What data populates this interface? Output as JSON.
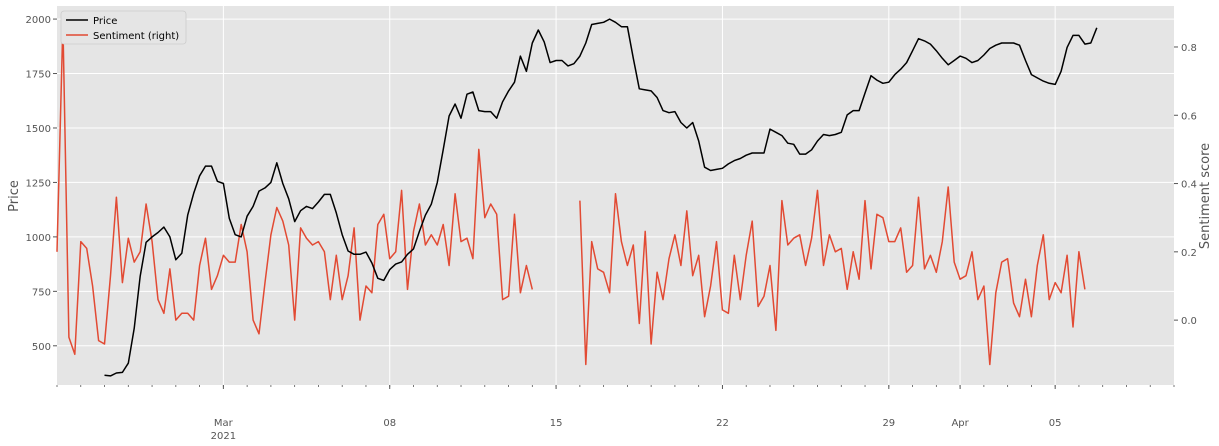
{
  "chart_data": {
    "type": "line",
    "title": "",
    "ylabel": "Price",
    "ylabel_right": "Sentiment score",
    "ylim": [
      320,
      2060
    ],
    "ylim_right": [
      -0.19,
      0.92
    ],
    "xlim": [
      "2021-02-22",
      "2021-04-10"
    ],
    "grid": true,
    "legend_position": "top-left",
    "colors": {
      "price": "#000000",
      "sentiment": "#e24a33",
      "plot_bg": "#e5e5e5",
      "grid": "#ffffff",
      "text": "#555555"
    },
    "yticks": [
      500,
      750,
      1000,
      1250,
      1500,
      1750,
      2000
    ],
    "yticks_right": [
      "0.0",
      "0.2",
      "0.4",
      "0.6",
      "0.8"
    ],
    "yticks_right_values": [
      0.0,
      0.2,
      0.4,
      0.6,
      0.8
    ],
    "xticks": [
      {
        "date": "2021-03-01",
        "label": "Mar",
        "label2": "2021"
      },
      {
        "date": "2021-03-08",
        "label": "08",
        "label2": ""
      },
      {
        "date": "2021-03-15",
        "label": "15",
        "label2": ""
      },
      {
        "date": "2021-03-22",
        "label": "22",
        "label2": ""
      },
      {
        "date": "2021-03-29",
        "label": "29",
        "label2": ""
      },
      {
        "date": "2021-04-01",
        "label": "Apr",
        "label2": ""
      },
      {
        "date": "2021-04-05",
        "label": "05",
        "label2": ""
      }
    ],
    "series": [
      {
        "name": "Price",
        "axis": "left",
        "x_start": "2021-02-22",
        "step_days": 0.25,
        "values": [
          null,
          null,
          null,
          null,
          null,
          null,
          null,
          null,
          365,
          362,
          375,
          378,
          420,
          580,
          820,
          975,
          1000,
          1020,
          1045,
          1000,
          895,
          925,
          1100,
          1200,
          1280,
          1325,
          1325,
          1255,
          1245,
          1085,
          1010,
          1000,
          1095,
          1140,
          1210,
          1225,
          1250,
          1340,
          1245,
          1175,
          1070,
          1120,
          1140,
          1130,
          1160,
          1195,
          1195,
          1110,
          1010,
          935,
          920,
          920,
          930,
          880,
          810,
          800,
          850,
          875,
          885,
          920,
          945,
          1025,
          1100,
          1150,
          1250,
          1400,
          1555,
          1610,
          1545,
          1655,
          1665,
          1580,
          1575,
          1575,
          1545,
          1620,
          1670,
          1710,
          1830,
          1760,
          1890,
          1950,
          1895,
          1800,
          1810,
          1810,
          1785,
          1795,
          1830,
          1890,
          1975,
          1980,
          1985,
          2000,
          1985,
          1965,
          1965,
          1820,
          1680,
          1675,
          1670,
          1640,
          1580,
          1570,
          1575,
          1525,
          1500,
          1525,
          1440,
          1320,
          1305,
          1310,
          1315,
          1335,
          1350,
          1360,
          1375,
          1385,
          1385,
          1385,
          1495,
          1480,
          1465,
          1430,
          1425,
          1380,
          1380,
          1400,
          1440,
          1470,
          1465,
          1470,
          1480,
          1560,
          1580,
          1580,
          1660,
          1740,
          1720,
          1705,
          1710,
          1745,
          1770,
          1800,
          1855,
          1910,
          1900,
          1885,
          1855,
          1820,
          1790,
          1810,
          1830,
          1820,
          1800,
          1810,
          1835,
          1865,
          1880,
          1890,
          1890,
          1890,
          1880,
          1810,
          1745,
          1730,
          1715,
          1705,
          1700,
          1760,
          1870,
          1925,
          1925,
          1885,
          1890,
          1960
        ]
      },
      {
        "name": "Sentiment (right)",
        "axis": "right",
        "x_start": "2021-02-22",
        "step_days": 0.25,
        "values": [
          0.2,
          0.87,
          -0.05,
          -0.1,
          0.23,
          0.21,
          0.1,
          -0.06,
          -0.07,
          0.13,
          0.36,
          0.11,
          0.24,
          0.17,
          0.2,
          0.34,
          0.23,
          0.06,
          0.02,
          0.15,
          0.0,
          0.02,
          0.02,
          0.0,
          0.16,
          0.24,
          0.09,
          0.13,
          0.19,
          0.17,
          0.17,
          0.28,
          0.2,
          0.0,
          -0.04,
          0.11,
          0.25,
          0.33,
          0.29,
          0.22,
          0.0,
          0.27,
          0.24,
          0.22,
          0.23,
          0.2,
          0.06,
          0.19,
          0.06,
          0.13,
          0.27,
          0.0,
          0.1,
          0.08,
          0.28,
          0.31,
          0.18,
          0.2,
          0.38,
          0.09,
          0.26,
          0.34,
          0.22,
          0.25,
          0.22,
          0.28,
          0.16,
          0.37,
          0.23,
          0.24,
          0.18,
          0.5,
          0.3,
          0.34,
          0.31,
          0.06,
          0.07,
          0.31,
          0.08,
          0.16,
          0.09,
          null,
          null,
          null,
          null,
          null,
          null,
          null,
          0.35,
          -0.13,
          0.23,
          0.15,
          0.14,
          0.08,
          0.37,
          0.23,
          0.16,
          0.22,
          -0.01,
          0.26,
          -0.07,
          0.14,
          0.06,
          0.18,
          0.25,
          0.16,
          0.32,
          0.13,
          0.19,
          0.01,
          0.1,
          0.23,
          0.03,
          0.02,
          0.19,
          0.06,
          0.19,
          0.29,
          0.04,
          0.07,
          0.16,
          -0.03,
          0.35,
          0.22,
          0.24,
          0.25,
          0.16,
          0.24,
          0.38,
          0.16,
          0.25,
          0.2,
          0.21,
          0.09,
          0.2,
          0.12,
          0.35,
          0.15,
          0.31,
          0.3,
          0.23,
          0.23,
          0.27,
          0.14,
          0.16,
          0.36,
          0.15,
          0.19,
          0.14,
          0.23,
          0.39,
          0.17,
          0.12,
          0.13,
          0.2,
          0.06,
          0.1,
          -0.13,
          0.08,
          0.17,
          0.18,
          0.05,
          0.01,
          0.12,
          0.01,
          0.16,
          0.25,
          0.06,
          0.11,
          0.08,
          0.19,
          -0.02,
          0.2,
          0.09
        ]
      }
    ]
  }
}
